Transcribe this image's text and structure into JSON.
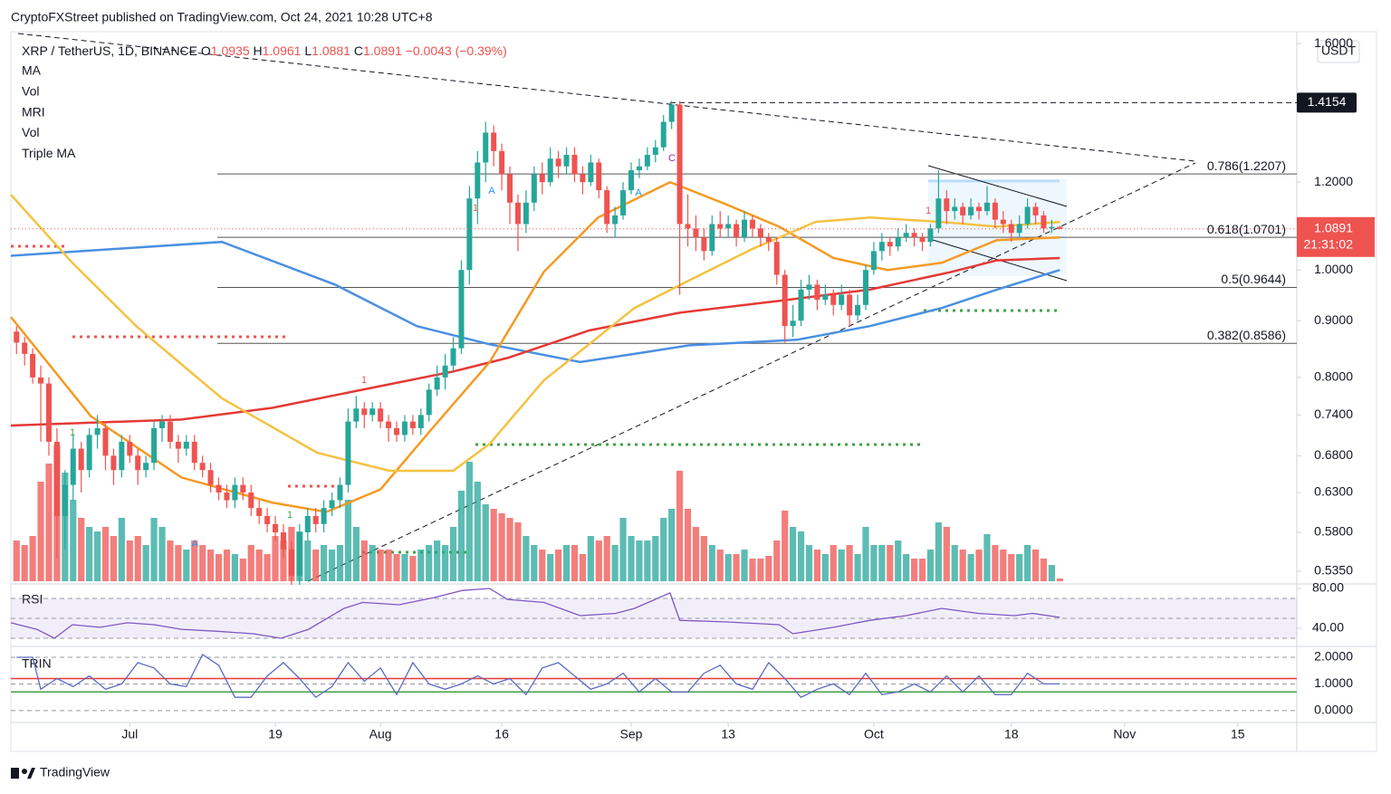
{
  "chart_data": {
    "type": "candlestick",
    "publisher": "CryptoFXStreet published on TradingView.com, Oct 24, 2021 10:28 UTC+8",
    "symbol": "XRP / TetherUS, 1D, BINANCE",
    "ohlc_prefixes": [
      "O",
      "H",
      "L",
      "C"
    ],
    "change_label": "−0.0043 (−0.39%)",
    "indicators": [
      "MA",
      "Vol",
      "MRI",
      "Vol",
      "Triple MA"
    ],
    "currency": "USDT",
    "countdown": "21:31:02",
    "brand": "TradingView",
    "up_color": "#26a69a",
    "down_color": "#ef5350",
    "log_scale": true,
    "xlim": [
      -0.7,
      158.3
    ],
    "xticks": [
      {
        "value": 14,
        "label": "Jul"
      },
      {
        "value": 32,
        "label": "19"
      },
      {
        "value": 45,
        "label": "Aug"
      },
      {
        "value": 60,
        "label": "16"
      },
      {
        "value": 76,
        "label": "Sep"
      },
      {
        "value": 88,
        "label": "13"
      },
      {
        "value": 106,
        "label": "Oct"
      },
      {
        "value": 123,
        "label": "18"
      },
      {
        "value": 137,
        "label": "Nov"
      },
      {
        "value": 151,
        "label": "15"
      }
    ],
    "ylim": [
      0.524,
      1.64
    ],
    "yticks": [
      {
        "value": 1.6,
        "label": "1.6000"
      },
      {
        "value": 1.2,
        "label": "1.2000"
      },
      {
        "value": 1,
        "label": "1.0000"
      },
      {
        "value": 0.9,
        "label": "0.9000"
      },
      {
        "value": 0.8,
        "label": "0.8000"
      },
      {
        "value": 0.74,
        "label": "0.7400"
      },
      {
        "value": 0.68,
        "label": "0.6800"
      },
      {
        "value": 0.63,
        "label": "0.6300"
      },
      {
        "value": 0.58,
        "label": "0.5800"
      },
      {
        "value": 0.535,
        "label": "0.5350"
      }
    ],
    "hline": 1.4154,
    "fib_levels": [
      {
        "value": 1.2207,
        "label": "0.786(1.2207)"
      },
      {
        "value": 1.0701,
        "label": "0.618(1.0701)"
      },
      {
        "value": 0.9644,
        "label": "0.5(0.9644)"
      },
      {
        "value": 0.8586,
        "label": "0.382(0.8586)"
      }
    ],
    "candles": [
      [
        0.88,
        0.89,
        0.84,
        0.86
      ],
      [
        0.86,
        0.87,
        0.82,
        0.84
      ],
      [
        0.84,
        0.85,
        0.79,
        0.8
      ],
      [
        0.8,
        0.82,
        0.7,
        0.79
      ],
      [
        0.79,
        0.8,
        0.68,
        0.7
      ],
      [
        0.7,
        0.72,
        0.55,
        0.6
      ],
      [
        0.6,
        0.66,
        0.56,
        0.64
      ],
      [
        0.64,
        0.71,
        0.62,
        0.69
      ],
      [
        0.69,
        0.7,
        0.63,
        0.66
      ],
      [
        0.66,
        0.72,
        0.65,
        0.71
      ],
      [
        0.71,
        0.74,
        0.69,
        0.72
      ],
      [
        0.72,
        0.73,
        0.66,
        0.68
      ],
      [
        0.68,
        0.69,
        0.64,
        0.66
      ],
      [
        0.66,
        0.71,
        0.65,
        0.7
      ],
      [
        0.7,
        0.71,
        0.67,
        0.68
      ],
      [
        0.68,
        0.69,
        0.64,
        0.66
      ],
      [
        0.66,
        0.68,
        0.65,
        0.67
      ],
      [
        0.67,
        0.73,
        0.66,
        0.72
      ],
      [
        0.72,
        0.74,
        0.7,
        0.73
      ],
      [
        0.73,
        0.74,
        0.69,
        0.7
      ],
      [
        0.7,
        0.71,
        0.67,
        0.69
      ],
      [
        0.69,
        0.71,
        0.68,
        0.7
      ],
      [
        0.7,
        0.71,
        0.66,
        0.67
      ],
      [
        0.67,
        0.68,
        0.65,
        0.66
      ],
      [
        0.66,
        0.67,
        0.63,
        0.64
      ],
      [
        0.64,
        0.65,
        0.62,
        0.63
      ],
      [
        0.63,
        0.64,
        0.61,
        0.62
      ],
      [
        0.62,
        0.65,
        0.61,
        0.64
      ],
      [
        0.64,
        0.65,
        0.62,
        0.63
      ],
      [
        0.63,
        0.64,
        0.6,
        0.61
      ],
      [
        0.61,
        0.62,
        0.59,
        0.6
      ],
      [
        0.6,
        0.61,
        0.58,
        0.59
      ],
      [
        0.59,
        0.6,
        0.57,
        0.58
      ],
      [
        0.58,
        0.59,
        0.55,
        0.56
      ],
      [
        0.56,
        0.57,
        0.52,
        0.53
      ],
      [
        0.53,
        0.59,
        0.52,
        0.58
      ],
      [
        0.58,
        0.61,
        0.57,
        0.6
      ],
      [
        0.6,
        0.61,
        0.58,
        0.59
      ],
      [
        0.59,
        0.62,
        0.58,
        0.61
      ],
      [
        0.61,
        0.63,
        0.6,
        0.62
      ],
      [
        0.62,
        0.65,
        0.61,
        0.64
      ],
      [
        0.64,
        0.75,
        0.63,
        0.73
      ],
      [
        0.73,
        0.77,
        0.72,
        0.75
      ],
      [
        0.75,
        0.76,
        0.72,
        0.74
      ],
      [
        0.74,
        0.76,
        0.73,
        0.75
      ],
      [
        0.75,
        0.76,
        0.72,
        0.73
      ],
      [
        0.73,
        0.74,
        0.7,
        0.72
      ],
      [
        0.72,
        0.73,
        0.7,
        0.71
      ],
      [
        0.71,
        0.74,
        0.7,
        0.73
      ],
      [
        0.73,
        0.74,
        0.71,
        0.72
      ],
      [
        0.72,
        0.75,
        0.71,
        0.74
      ],
      [
        0.74,
        0.79,
        0.73,
        0.78
      ],
      [
        0.78,
        0.82,
        0.77,
        0.8
      ],
      [
        0.8,
        0.84,
        0.78,
        0.82
      ],
      [
        0.82,
        0.87,
        0.81,
        0.85
      ],
      [
        0.85,
        1.02,
        0.84,
        1.0
      ],
      [
        1.0,
        1.19,
        0.97,
        1.16
      ],
      [
        1.16,
        1.28,
        1.1,
        1.25
      ],
      [
        1.25,
        1.36,
        1.2,
        1.33
      ],
      [
        1.33,
        1.35,
        1.24,
        1.28
      ],
      [
        1.28,
        1.3,
        1.18,
        1.22
      ],
      [
        1.22,
        1.24,
        1.1,
        1.15
      ],
      [
        1.15,
        1.17,
        1.04,
        1.1
      ],
      [
        1.1,
        1.18,
        1.08,
        1.15
      ],
      [
        1.15,
        1.24,
        1.13,
        1.22
      ],
      [
        1.22,
        1.25,
        1.17,
        1.2
      ],
      [
        1.2,
        1.29,
        1.19,
        1.26
      ],
      [
        1.26,
        1.28,
        1.21,
        1.24
      ],
      [
        1.24,
        1.29,
        1.22,
        1.27
      ],
      [
        1.27,
        1.29,
        1.2,
        1.22
      ],
      [
        1.22,
        1.24,
        1.17,
        1.2
      ],
      [
        1.2,
        1.27,
        1.19,
        1.25
      ],
      [
        1.25,
        1.26,
        1.16,
        1.18
      ],
      [
        1.18,
        1.19,
        1.08,
        1.1
      ],
      [
        1.1,
        1.14,
        1.07,
        1.12
      ],
      [
        1.12,
        1.2,
        1.11,
        1.18
      ],
      [
        1.18,
        1.25,
        1.17,
        1.23
      ],
      [
        1.23,
        1.26,
        1.21,
        1.24
      ],
      [
        1.24,
        1.29,
        1.23,
        1.27
      ],
      [
        1.27,
        1.31,
        1.25,
        1.29
      ],
      [
        1.29,
        1.38,
        1.28,
        1.36
      ],
      [
        1.36,
        1.42,
        1.34,
        1.41
      ],
      [
        1.41,
        1.42,
        0.95,
        1.1
      ],
      [
        1.1,
        1.17,
        1.05,
        1.09
      ],
      [
        1.09,
        1.12,
        1.04,
        1.07
      ],
      [
        1.07,
        1.09,
        1.02,
        1.04
      ],
      [
        1.04,
        1.12,
        1.03,
        1.1
      ],
      [
        1.1,
        1.13,
        1.07,
        1.09
      ],
      [
        1.09,
        1.12,
        1.07,
        1.1
      ],
      [
        1.1,
        1.11,
        1.05,
        1.07
      ],
      [
        1.07,
        1.13,
        1.06,
        1.11
      ],
      [
        1.11,
        1.12,
        1.07,
        1.09
      ],
      [
        1.09,
        1.1,
        1.05,
        1.07
      ],
      [
        1.07,
        1.08,
        1.04,
        1.06
      ],
      [
        1.06,
        1.07,
        0.97,
        0.99
      ],
      [
        0.99,
        1.0,
        0.86,
        0.89
      ],
      [
        0.89,
        0.93,
        0.87,
        0.9
      ],
      [
        0.9,
        0.98,
        0.89,
        0.96
      ],
      [
        0.96,
        0.99,
        0.94,
        0.97
      ],
      [
        0.97,
        0.98,
        0.92,
        0.94
      ],
      [
        0.94,
        0.97,
        0.93,
        0.95
      ],
      [
        0.95,
        0.96,
        0.91,
        0.93
      ],
      [
        0.93,
        0.97,
        0.92,
        0.95
      ],
      [
        0.95,
        0.96,
        0.89,
        0.91
      ],
      [
        0.91,
        0.95,
        0.9,
        0.93
      ],
      [
        0.93,
        1.01,
        0.92,
        1.0
      ],
      [
        1.0,
        1.06,
        0.99,
        1.04
      ],
      [
        1.04,
        1.08,
        1.02,
        1.06
      ],
      [
        1.06,
        1.07,
        1.03,
        1.05
      ],
      [
        1.05,
        1.09,
        1.04,
        1.07
      ],
      [
        1.07,
        1.1,
        1.06,
        1.08
      ],
      [
        1.08,
        1.09,
        1.05,
        1.07
      ],
      [
        1.07,
        1.08,
        1.04,
        1.06
      ],
      [
        1.06,
        1.1,
        1.05,
        1.09
      ],
      [
        1.09,
        1.23,
        1.08,
        1.16
      ],
      [
        1.16,
        1.18,
        1.1,
        1.13
      ],
      [
        1.13,
        1.16,
        1.11,
        1.14
      ],
      [
        1.14,
        1.15,
        1.1,
        1.12
      ],
      [
        1.12,
        1.16,
        1.11,
        1.14
      ],
      [
        1.14,
        1.15,
        1.11,
        1.13
      ],
      [
        1.13,
        1.19,
        1.12,
        1.15
      ],
      [
        1.15,
        1.16,
        1.09,
        1.11
      ],
      [
        1.11,
        1.13,
        1.08,
        1.1
      ],
      [
        1.1,
        1.11,
        1.06,
        1.08
      ],
      [
        1.08,
        1.12,
        1.07,
        1.1
      ],
      [
        1.1,
        1.16,
        1.09,
        1.14
      ],
      [
        1.14,
        1.15,
        1.1,
        1.12
      ],
      [
        1.12,
        1.13,
        1.08,
        1.09
      ],
      [
        1.09,
        1.11,
        1.08,
        1.0935
      ],
      [
        1.0935,
        1.0961,
        1.0881,
        1.0891
      ]
    ],
    "volume_lim": [
      0,
      160
    ],
    "volume": [
      45,
      40,
      50,
      110,
      130,
      150,
      120,
      90,
      70,
      60,
      55,
      60,
      50,
      70,
      45,
      50,
      40,
      70,
      60,
      45,
      40,
      35,
      45,
      40,
      35,
      30,
      35,
      30,
      25,
      40,
      35,
      30,
      50,
      45,
      60,
      55,
      45,
      35,
      40,
      35,
      40,
      90,
      60,
      45,
      40,
      35,
      35,
      30,
      30,
      28,
      35,
      40,
      45,
      40,
      60,
      100,
      132,
      110,
      85,
      80,
      75,
      70,
      65,
      50,
      40,
      35,
      30,
      35,
      40,
      40,
      30,
      50,
      45,
      50,
      40,
      70,
      50,
      45,
      45,
      50,
      70,
      80,
      122,
      80,
      60,
      50,
      40,
      35,
      30,
      30,
      35,
      25,
      25,
      28,
      45,
      78,
      60,
      55,
      40,
      35,
      30,
      40,
      35,
      40,
      30,
      60,
      40,
      40,
      40,
      45,
      30,
      25,
      25,
      35,
      65,
      60,
      40,
      35,
      30,
      35,
      52,
      40,
      35,
      30,
      30,
      40,
      35,
      25,
      18,
      3
    ],
    "ma": [
      {
        "color": "#4a90e2",
        "x": [
          -0.7,
          25.4,
          39.4,
          49.5,
          58.5,
          69.7,
          76.4,
          83.1,
          96.5,
          105.5,
          114.4,
          121.2,
          129.0
        ],
        "values": [
          1.03,
          1.06,
          0.97,
          0.89,
          0.857,
          0.826,
          0.84,
          0.855,
          0.865,
          0.89,
          0.924,
          0.96,
          1.0
        ]
      },
      {
        "color": "#e53935",
        "x": [
          -0.7,
          20.4,
          31.6,
          42.8,
          54.0,
          60.7,
          70.8,
          82.0,
          95.4,
          105.5,
          115.6,
          121.2,
          129.0
        ],
        "values": [
          0.724,
          0.733,
          0.751,
          0.78,
          0.81,
          0.833,
          0.882,
          0.915,
          0.94,
          0.96,
          0.996,
          1.02,
          1.025
        ]
      },
      {
        "color": "#f59a23",
        "x": [
          -0.7,
          9.2,
          20.4,
          31.6,
          38.3,
          45.0,
          51.7,
          58.5,
          65.2,
          71.9,
          80.8,
          87.6,
          94.3,
          101.0,
          107.7,
          114.4,
          121.2,
          129.0
        ],
        "values": [
          0.907,
          0.738,
          0.65,
          0.617,
          0.605,
          0.634,
          0.724,
          0.826,
          0.996,
          1.115,
          1.2,
          1.147,
          1.094,
          1.025,
          1.0,
          1.015,
          1.064,
          1.07
        ]
      },
      {
        "color": "#f5c242",
        "x": [
          -0.7,
          6.9,
          14.8,
          25.4,
          37.2,
          46.1,
          54.0,
          58.5,
          65.2,
          76.4,
          83.1,
          90.9,
          98.8,
          105.5,
          114.4,
          121.2,
          129.0
        ],
        "values": [
          1.169,
          1.015,
          0.89,
          0.766,
          0.684,
          0.659,
          0.659,
          0.697,
          0.795,
          0.924,
          0.978,
          1.044,
          1.105,
          1.115,
          1.105,
          1.094,
          1.105
        ]
      }
    ],
    "rsi": {
      "name": "RSI",
      "color": "#7e57c2",
      "ylim": [
        23.6,
        81.8
      ],
      "yticks": [
        {
          "value": 80,
          "label": "80.00"
        },
        {
          "value": 40,
          "label": "40.00"
        }
      ],
      "bands": [
        70,
        50,
        30
      ],
      "x": [
        -0.7,
        2.5,
        4.7,
        6.9,
        10.3,
        13.7,
        17.0,
        20.4,
        24.9,
        29.3,
        32.7,
        36.1,
        40.5,
        42.8,
        47.3,
        51.7,
        55.1,
        58.5,
        60.7,
        65.2,
        69.7,
        74.1,
        76.4,
        80.8,
        82.0,
        87.6,
        94.3,
        96.0,
        101.0,
        105.5,
        110.0,
        114.4,
        118.9,
        123.4,
        125.6,
        129.0
      ],
      "values": [
        45.5,
        39,
        30,
        43.6,
        41,
        45.5,
        43.6,
        39,
        37,
        34.5,
        30,
        39,
        60,
        66,
        63.6,
        71,
        78,
        80,
        69,
        66,
        52.7,
        55,
        60,
        75.5,
        48,
        46.4,
        43.6,
        34.5,
        41,
        48,
        52.7,
        60,
        55,
        52.7,
        55,
        51
      ]
    },
    "trin": {
      "name": "TRIN",
      "color": "#5c6bc0",
      "ylim": [
        -0.24,
        2.27
      ],
      "yticks": [
        {
          "value": 2,
          "label": "2.0000"
        },
        {
          "value": 1,
          "label": "1.0000"
        },
        {
          "value": 0,
          "label": "0.0000"
        }
      ],
      "levels": [
        {
          "value": 1.2,
          "color": "#e53935"
        },
        {
          "value": 0.7,
          "color": "#43a047"
        }
      ],
      "x": [
        0,
        2,
        3,
        5,
        7,
        9,
        11,
        13,
        15,
        17,
        19,
        21,
        23,
        25,
        27,
        29,
        31,
        33,
        35,
        37,
        39,
        41,
        43,
        45,
        47,
        49,
        51,
        53,
        55,
        57,
        59,
        61,
        63,
        65,
        67,
        69,
        71,
        73,
        75,
        77,
        79,
        81,
        83,
        85,
        87,
        89,
        91,
        93,
        95,
        97,
        99,
        101,
        103,
        105,
        107,
        109,
        111,
        113,
        115,
        117,
        119,
        121,
        123,
        125,
        127,
        129
      ],
      "values": [
        2.0,
        2.0,
        0.8,
        1.2,
        0.9,
        1.3,
        0.8,
        1.0,
        1.8,
        1.6,
        1.0,
        0.9,
        2.1,
        1.7,
        0.5,
        0.5,
        1.3,
        1.8,
        1.2,
        0.5,
        0.9,
        1.8,
        1.1,
        1.6,
        0.6,
        1.8,
        1.0,
        0.8,
        1.0,
        1.3,
        1.0,
        1.2,
        0.6,
        1.6,
        1.8,
        1.3,
        0.8,
        1.0,
        1.4,
        0.7,
        1.2,
        0.7,
        0.7,
        1.4,
        1.7,
        1.0,
        0.8,
        1.8,
        1.2,
        0.5,
        0.8,
        1.0,
        0.6,
        1.4,
        0.6,
        0.7,
        1.0,
        0.7,
        1.3,
        0.7,
        1.3,
        0.6,
        0.6,
        1.4,
        1.0,
        1.0
      ]
    },
    "markers": [
      "A",
      "A",
      "A",
      "C",
      "1",
      "1",
      "1",
      "1",
      "1"
    ]
  }
}
